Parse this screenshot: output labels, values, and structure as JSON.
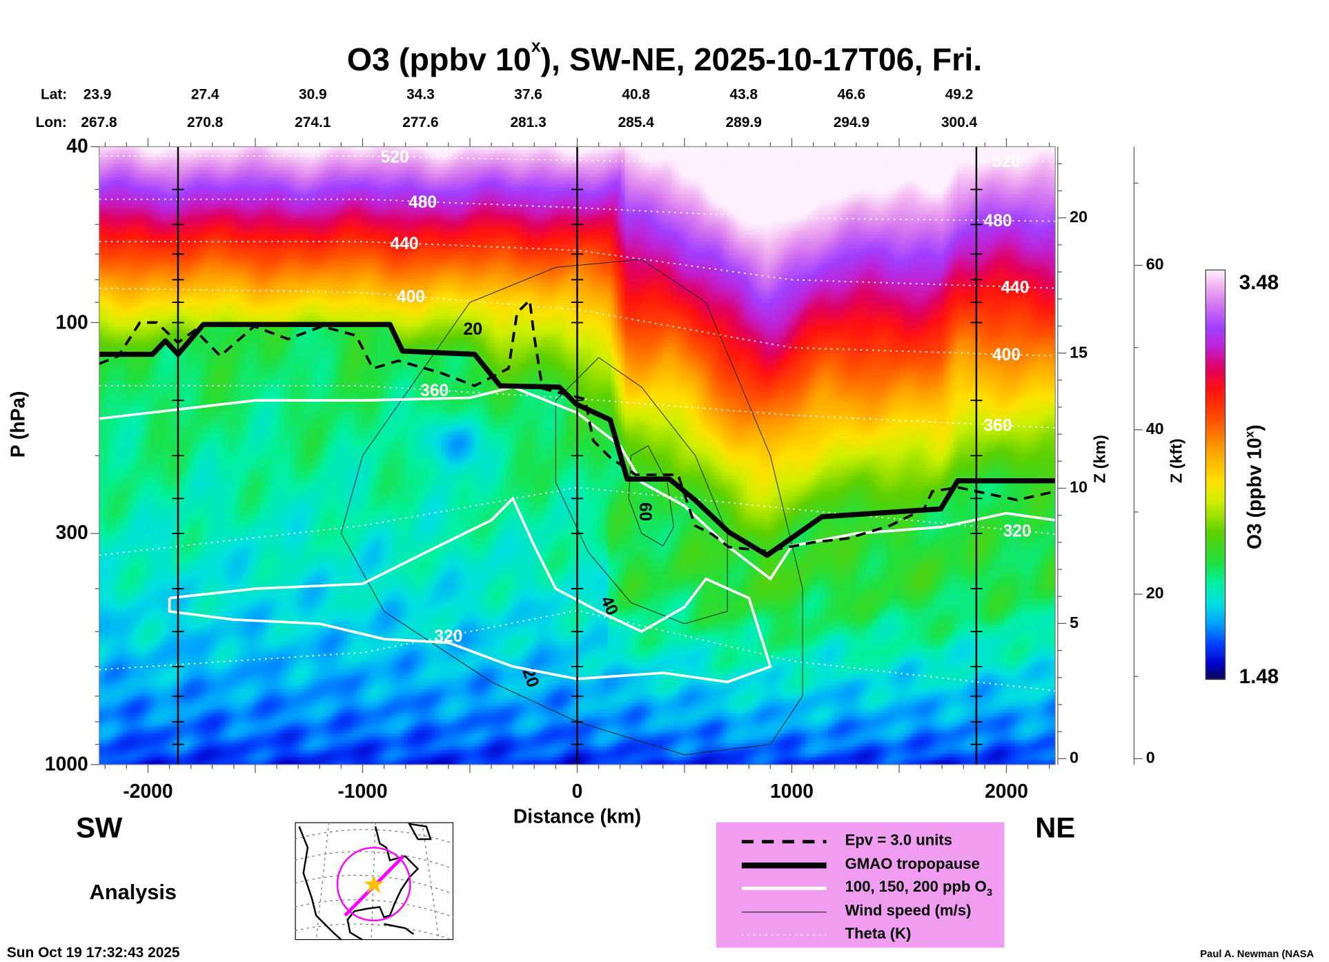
{
  "title": {
    "pre": "O3 (ppbv 10",
    "sup": "x",
    "post": "), SW-NE, 2025-10-17T06, Fri."
  },
  "lat_label": "Lat:",
  "lon_label": "Lon:",
  "lats": [
    "23.9",
    "27.4",
    "30.9",
    "34.3",
    "37.6",
    "40.8",
    "43.8",
    "46.6",
    "49.2"
  ],
  "lons": [
    "267.8",
    "270.8",
    "274.1",
    "277.6",
    "281.3",
    "285.4",
    "289.9",
    "294.9",
    "300.4"
  ],
  "left_label": "SW",
  "right_label": "NE",
  "analysis_label": "Analysis",
  "timestamp": "Sun Oct 19 17:32:43 2025",
  "credit": "Paul A. Newman (NASA",
  "legend": [
    {
      "style": "dashed",
      "label": "Epv = 3.0 units"
    },
    {
      "style": "thick",
      "label": "GMAO tropopause"
    },
    {
      "style": "white",
      "label": "100, 150, 200 ppb O",
      "sub": "3"
    },
    {
      "style": "thin",
      "label": "Wind speed (m/s)"
    },
    {
      "style": "dotted",
      "label": "Theta (K)"
    }
  ],
  "colors": {
    "legend_bg": "#f09cf0",
    "path_line": "#ff00ff",
    "star": "#ffc000"
  },
  "chart_data": {
    "type": "heatmap",
    "title": "O3 (ppbv 10^x), SW-NE, 2025-10-17T06, Fri.",
    "xlabel": "Distance (km)",
    "ylabel": "P (hPa)",
    "xlim": [
      -2228,
      2228
    ],
    "ylim": [
      1000,
      40
    ],
    "xticks": [
      "-2000",
      "-1000",
      "0",
      "1000",
      "2000"
    ],
    "xtick_values": [
      -2000,
      -1000,
      0,
      1000,
      2000
    ],
    "yticks": [
      "40",
      "100",
      "300",
      "1000"
    ],
    "ytick_values": [
      40,
      100,
      300,
      1000
    ],
    "vertical_lines_km": [
      -1860,
      0,
      1860
    ],
    "z_km": {
      "label": "Z (km)",
      "ticks": [
        "0",
        "5",
        "10",
        "15",
        "20"
      ],
      "values": [
        0,
        5,
        10,
        15,
        20
      ]
    },
    "z_kft": {
      "label": "Z (kft)",
      "ticks": [
        "0",
        "20",
        "40",
        "60"
      ],
      "values": [
        0,
        20,
        40,
        60
      ]
    },
    "colorbar": {
      "label": "O3 (ppbv 10",
      "label_sup": "x",
      "label_end": ")",
      "max_label": "3.48",
      "min_label": "1.48",
      "min": 1.48,
      "max": 3.48
    },
    "tropopause": {
      "d": [
        -2228,
        -1979,
        -1919,
        -1860,
        -1742,
        -873,
        -814,
        -478,
        -359,
        -83,
        -4,
        154,
        233,
        430,
        549,
        707,
        885,
        1141,
        1694,
        1773,
        2228
      ],
      "p": [
        118,
        118,
        110,
        118,
        101,
        101,
        116,
        118,
        139,
        140,
        153,
        166,
        226,
        226,
        252,
        298,
        336,
        275,
        264,
        228,
        228
      ]
    },
    "epv": {
      "d": [
        -2228,
        -2137,
        -2038,
        -1959,
        -1860,
        -1781,
        -1663,
        -1505,
        -1347,
        -1189,
        -1031,
        -952,
        -833,
        -636,
        -478,
        -320,
        -280,
        -221,
        -201,
        -162,
        36,
        75,
        154,
        273,
        470,
        549,
        628,
        707,
        885,
        1102,
        1260,
        1458,
        1616,
        1655,
        1774,
        2050,
        2228
      ],
      "p": [
        124,
        119,
        100,
        100,
        111,
        104,
        119,
        102,
        109,
        102,
        107,
        127,
        122,
        130,
        139,
        127,
        95,
        89,
        107,
        141,
        149,
        185,
        202,
        221,
        221,
        288,
        301,
        322,
        329,
        314,
        308,
        288,
        264,
        241,
        236,
        252,
        241
      ]
    },
    "theta": [
      {
        "value": "520",
        "d": [
          -2228,
          -1000,
          0,
          1000,
          2228
        ],
        "p": [
          42,
          42,
          43,
          43.5,
          43
        ],
        "labels_d": [
          -850,
          2000
        ]
      },
      {
        "value": "480",
        "d": [
          -2228,
          -1000,
          0,
          1000,
          2228
        ],
        "p": [
          52.6,
          52.6,
          55,
          58,
          59
        ],
        "labels_d": [
          -720,
          1960
        ]
      },
      {
        "value": "440",
        "d": [
          -2228,
          -1000,
          0,
          1000,
          2228
        ],
        "p": [
          65.6,
          65.6,
          68.6,
          80,
          83.6
        ],
        "labels_d": [
          -805,
          2040
        ]
      },
      {
        "value": "400",
        "d": [
          -2228,
          -1000,
          0,
          1000,
          2228
        ],
        "p": [
          83.6,
          85.5,
          93.4,
          114,
          119
        ],
        "labels_d": [
          -775,
          2000
        ]
      },
      {
        "value": "360",
        "d": [
          -2228,
          -1000,
          0,
          1000,
          2228
        ],
        "p": [
          139,
          139,
          148.6,
          162,
          173
        ],
        "labels_d": [
          -665,
          1960
        ]
      },
      {
        "value": "320",
        "d": [
          -2228,
          -1000,
          0,
          1000,
          2228
        ],
        "p": [
          336,
          288,
          236,
          264,
          301
        ],
        "labels_d": [
          2050
        ]
      },
      {
        "value": "320",
        "d": [
          -2228,
          -1000,
          0,
          1000,
          2228
        ],
        "p": [
          610,
          558,
          448,
          583,
          681
        ],
        "labels_d": [
          -600
        ]
      }
    ],
    "o3_contours": [
      {
        "d": [
          -2228,
          -1500,
          -1000,
          -500,
          -300,
          0,
          200,
          300,
          500,
          700,
          900,
          1000,
          1300,
          1700,
          2000,
          2228
        ],
        "p": [
          165,
          150,
          150,
          148,
          140,
          160,
          190,
          230,
          260,
          320,
          380,
          320,
          300,
          290,
          270,
          280
        ]
      },
      {
        "d": [
          -1900,
          -1500,
          -1000,
          -700,
          -400,
          -300,
          -200,
          -100,
          100,
          300,
          500,
          600,
          800,
          900,
          700,
          400,
          0,
          -300,
          -600,
          -900,
          -1200,
          -1600,
          -1900,
          -1900
        ],
        "p": [
          420,
          400,
          390,
          330,
          280,
          250,
          320,
          400,
          450,
          500,
          440,
          380,
          420,
          600,
          650,
          620,
          640,
          600,
          530,
          520,
          480,
          470,
          450,
          420
        ]
      }
    ],
    "wind_contours": [
      {
        "value": 60,
        "d": [
          250,
          330,
          420,
          450,
          400,
          300,
          240,
          250
        ],
        "p": [
          200,
          190,
          230,
          290,
          320,
          300,
          250,
          200
        ]
      },
      {
        "value": 40,
        "d": [
          -100,
          100,
          300,
          550,
          700,
          700,
          500,
          250,
          50,
          -100,
          -100
        ],
        "p": [
          150,
          120,
          140,
          200,
          300,
          450,
          480,
          430,
          330,
          230,
          150
        ]
      },
      {
        "value": 20,
        "d": [
          -1000,
          -500,
          -100,
          300,
          600,
          900,
          1050,
          1050,
          900,
          500,
          0,
          -400,
          -900,
          -1100,
          -1000
        ],
        "p": [
          200,
          90,
          75,
          72,
          90,
          200,
          400,
          700,
          900,
          950,
          800,
          650,
          450,
          300,
          200
        ]
      }
    ],
    "wind_labels": [
      {
        "text": "20",
        "d": -486,
        "p": 104,
        "rot": 0
      },
      {
        "text": "60",
        "d": 312,
        "p": 268,
        "rot": 90
      },
      {
        "text": "40",
        "d": 146,
        "p": 438,
        "rot": 65
      },
      {
        "text": "20",
        "d": -221,
        "p": 637,
        "rot": 70
      }
    ]
  }
}
